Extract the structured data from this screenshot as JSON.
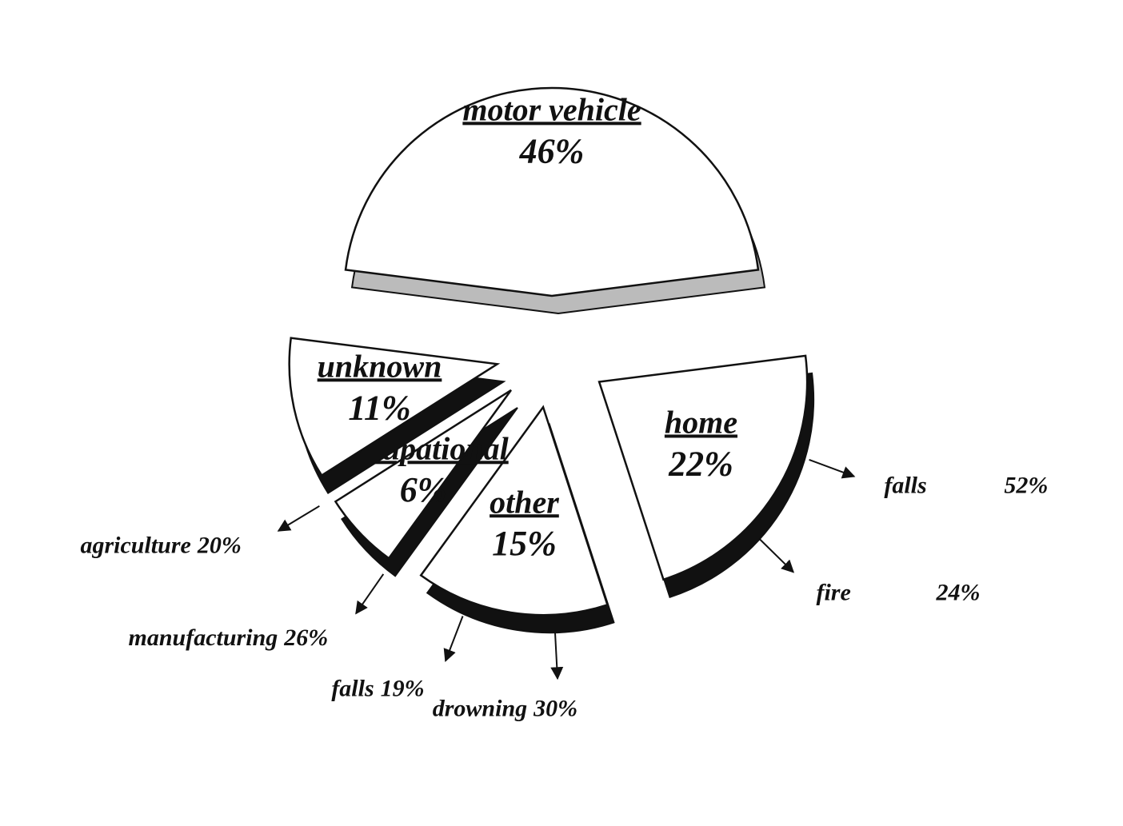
{
  "chart_data": {
    "type": "pie",
    "categories": [
      "motor vehicle",
      "home",
      "other",
      "occupational",
      "unknown"
    ],
    "values": [
      46,
      22,
      15,
      6,
      11
    ],
    "value_labels": [
      "46%",
      "22%",
      "15%",
      "6%",
      "11%"
    ],
    "color": "#ffffff",
    "edge_color": "#111111",
    "breakdowns": [
      null,
      [
        {
          "name": "falls",
          "value": 52,
          "value_label": "52%"
        },
        {
          "name": "fire",
          "value": 24,
          "value_label": "24%"
        }
      ],
      [
        {
          "name": "drowning",
          "value": 30,
          "value_label": "30%"
        },
        {
          "name": "falls",
          "value": 19,
          "value_label": "19%"
        }
      ],
      [
        {
          "name": "manufacturing",
          "value": 26,
          "value_label": "26%"
        },
        {
          "name": "agriculture",
          "value": 20,
          "value_label": "20%"
        }
      ],
      null
    ]
  }
}
